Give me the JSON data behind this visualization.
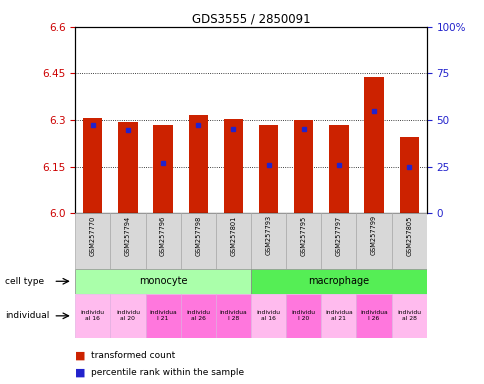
{
  "title": "GDS3555 / 2850091",
  "samples": [
    "GSM257770",
    "GSM257794",
    "GSM257796",
    "GSM257798",
    "GSM257801",
    "GSM257793",
    "GSM257795",
    "GSM257797",
    "GSM257799",
    "GSM257805"
  ],
  "bar_heights": [
    6.305,
    6.293,
    6.285,
    6.315,
    6.303,
    6.284,
    6.3,
    6.284,
    6.437,
    6.245
  ],
  "percentile_positions": [
    6.283,
    6.268,
    6.16,
    6.285,
    6.27,
    6.155,
    6.27,
    6.155,
    6.328,
    6.148
  ],
  "bar_base": 6.0,
  "ymin": 6.0,
  "ymax": 6.6,
  "yticks_left": [
    6.0,
    6.15,
    6.3,
    6.45,
    6.6
  ],
  "yticks_right_pct": [
    0,
    25,
    50,
    75,
    100
  ],
  "bar_color": "#cc2200",
  "percentile_color": "#2222cc",
  "background_color": "#ffffff",
  "plot_bg": "#ffffff",
  "bar_width": 0.55,
  "left_tick_color": "#cc0000",
  "right_tick_color": "#2222cc",
  "mono_color": "#aaffaa",
  "macro_color": "#55ee55",
  "indiv_colors": [
    "#ffbbee",
    "#ffbbee",
    "#ff77dd",
    "#ff77dd",
    "#ff77dd",
    "#ffbbee",
    "#ff77dd",
    "#ffbbee",
    "#ff77dd",
    "#ffbbee"
  ],
  "indiv_labels": [
    "individu\nal 16",
    "individu\nal 20",
    "individua\nl 21",
    "individu\nal 26",
    "individua\nl 28",
    "individu\nal 16",
    "individu\nl 20",
    "individua\nal 21",
    "individua\nl 26",
    "individu\nal 28"
  ]
}
